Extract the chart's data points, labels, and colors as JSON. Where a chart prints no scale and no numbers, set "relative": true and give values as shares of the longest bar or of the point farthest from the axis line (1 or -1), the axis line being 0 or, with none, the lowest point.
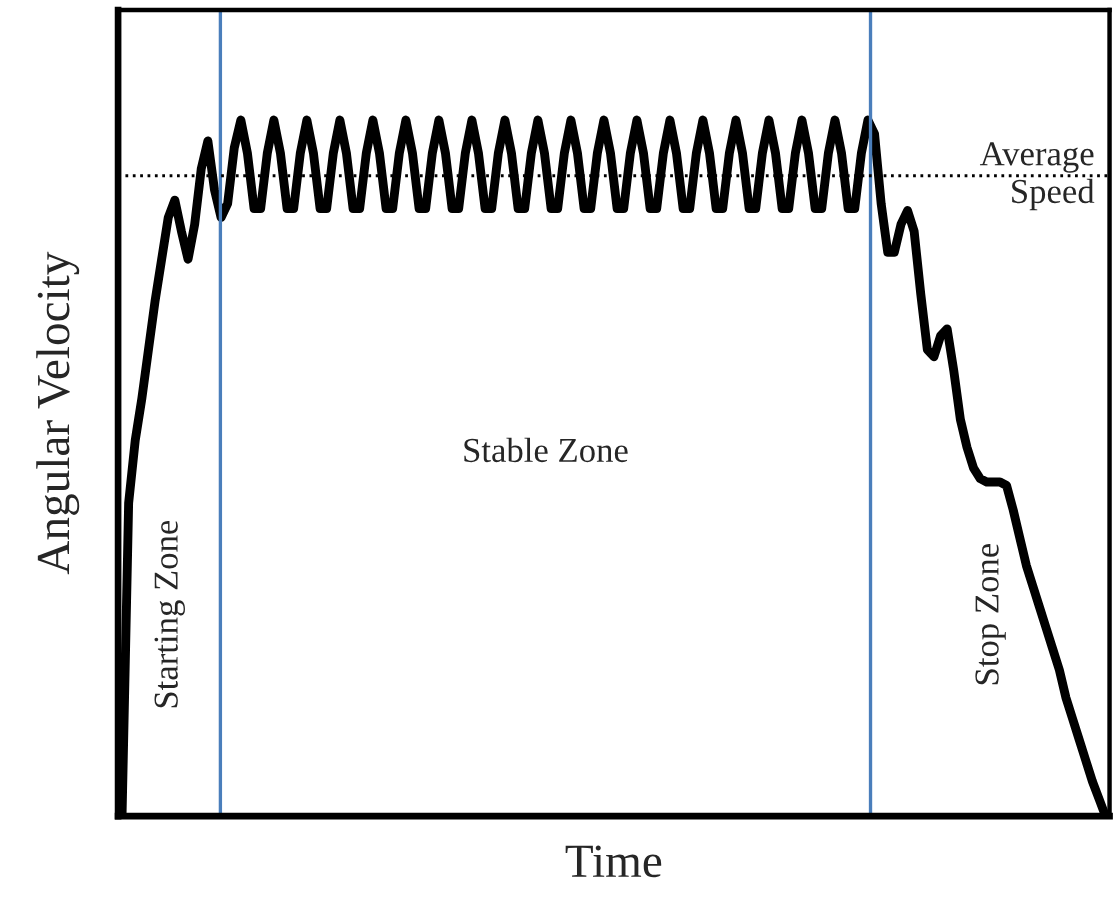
{
  "chart_data": {
    "type": "line",
    "relative": true,
    "xlabel": "Time",
    "ylabel": "Angular Velocity",
    "tick_labels": false,
    "legend": false,
    "marker": "none",
    "line_style": "solid",
    "categories": [
      null,
      null,
      null,
      null,
      null,
      null,
      null,
      null,
      null,
      null,
      null,
      null,
      null,
      null,
      null,
      null,
      null,
      null,
      null,
      null,
      null,
      null,
      null,
      null,
      null,
      null,
      null,
      null,
      null,
      null,
      null,
      null,
      null,
      null,
      null,
      null,
      null,
      null,
      null,
      null,
      null,
      null,
      null,
      null,
      null,
      null,
      null,
      null,
      null,
      null,
      null,
      null,
      null,
      null,
      null,
      null,
      null,
      null,
      null,
      null,
      null,
      null,
      null,
      null,
      null,
      null,
      null,
      null,
      null,
      null,
      null,
      null,
      null,
      null,
      null,
      null,
      null,
      null,
      null,
      null,
      null,
      null,
      null,
      null,
      null,
      null,
      null,
      null,
      null,
      null,
      null,
      null,
      null,
      null,
      null,
      null,
      null,
      null,
      null,
      null,
      null,
      null,
      null,
      null,
      null,
      null,
      null,
      null,
      null,
      null,
      null,
      null,
      null,
      null,
      null,
      null,
      null,
      null,
      null,
      null,
      null,
      null,
      null,
      null,
      null,
      null,
      null,
      null,
      null,
      null,
      null,
      null,
      null,
      null,
      null,
      null,
      null,
      null,
      null,
      null,
      null,
      null,
      null,
      null,
      null,
      null,
      null,
      null,
      null,
      null
    ],
    "series": [
      {
        "color": "#000000",
        "values": [
          0,
          0.45,
          0.54,
          0.6,
          0.67,
          0.74,
          0.8,
          0.86,
          0.885,
          0.84,
          0.8,
          0.85,
          0.93,
          0.97,
          0.9,
          0.86,
          0.88,
          0.96,
          1,
          0.952,
          0.873,
          0.873,
          0.952,
          1,
          0.952,
          0.873,
          0.873,
          0.952,
          1,
          0.952,
          0.873,
          0.873,
          0.952,
          1,
          0.952,
          0.873,
          0.873,
          0.952,
          1,
          0.952,
          0.873,
          0.873,
          0.952,
          1,
          0.952,
          0.873,
          0.873,
          0.952,
          1,
          0.952,
          0.873,
          0.873,
          0.952,
          1,
          0.952,
          0.873,
          0.873,
          0.952,
          1,
          0.952,
          0.873,
          0.873,
          0.952,
          1,
          0.952,
          0.873,
          0.873,
          0.952,
          1,
          0.952,
          0.873,
          0.873,
          0.952,
          1,
          0.952,
          0.873,
          0.873,
          0.952,
          1,
          0.952,
          0.873,
          0.873,
          0.952,
          1,
          0.952,
          0.873,
          0.873,
          0.952,
          1,
          0.952,
          0.873,
          0.873,
          0.952,
          1,
          0.952,
          0.873,
          0.873,
          0.952,
          1,
          0.952,
          0.873,
          0.873,
          0.952,
          1,
          0.952,
          0.873,
          0.873,
          0.952,
          1,
          0.952,
          0.873,
          0.873,
          0.952,
          1,
          0.98,
          0.88,
          0.81,
          0.81,
          0.85,
          0.87,
          0.84,
          0.75,
          0.67,
          0.66,
          0.69,
          0.7,
          0.64,
          0.57,
          0.53,
          0.5,
          0.485,
          0.48,
          0.48,
          0.48,
          0.475,
          0.44,
          0.4,
          0.36,
          0.33,
          0.3,
          0.27,
          0.24,
          0.21,
          0.17,
          0.14,
          0.11,
          0.08,
          0.05,
          0.025,
          0
        ]
      }
    ],
    "ref_lines": [
      {
        "axis": "y",
        "value": 0.92,
        "label": "Average\nSpeed",
        "color": "#000000",
        "line_style": "dotted"
      }
    ],
    "annotations": [
      "Starting Zone",
      "Stable Zone",
      "Stop Zone"
    ]
  }
}
